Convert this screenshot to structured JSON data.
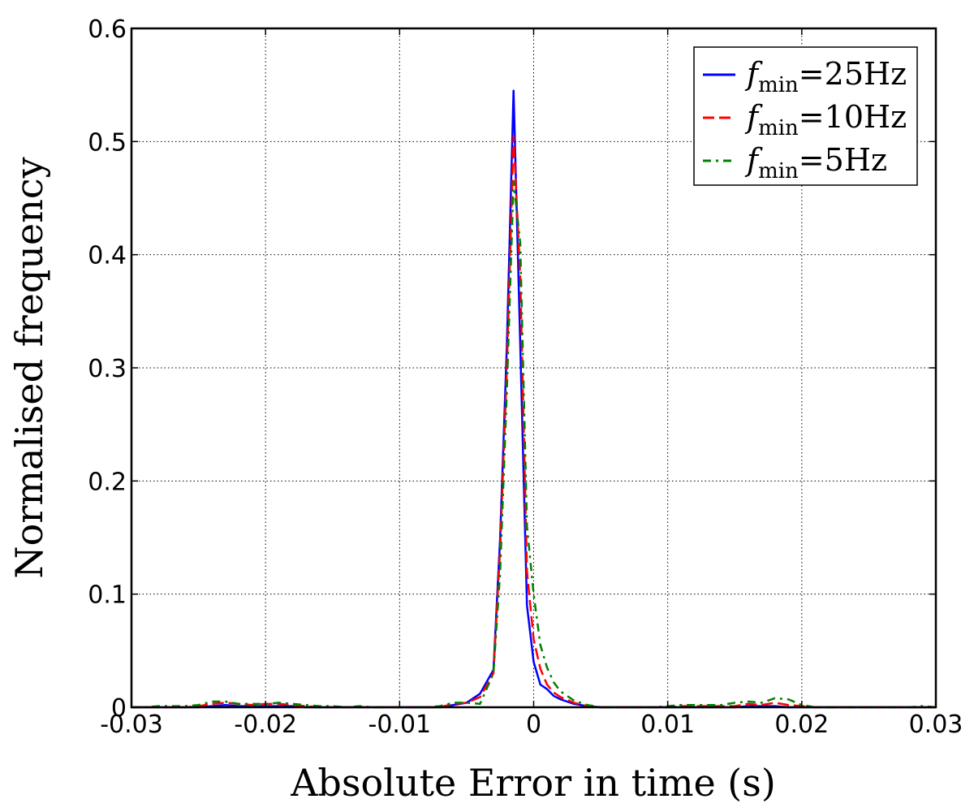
{
  "chart_data": {
    "type": "line",
    "title": "",
    "xlabel": "Absolute Error in time (s)",
    "ylabel": "Normalised frequency",
    "xlim": [
      -0.03,
      0.03
    ],
    "ylim": [
      0,
      0.6
    ],
    "x_ticks": [
      -0.03,
      -0.02,
      -0.01,
      0,
      0.01,
      0.02,
      0.03
    ],
    "x_tick_labels": [
      "-0.03",
      "-0.02",
      "-0.01",
      "0",
      "0.01",
      "0.02",
      "0.03"
    ],
    "y_ticks": [
      0,
      0.1,
      0.2,
      0.3,
      0.4,
      0.5,
      0.6
    ],
    "y_tick_labels": [
      "0",
      "0.1",
      "0.2",
      "0.3",
      "0.4",
      "0.5",
      "0.6"
    ],
    "grid": true,
    "legend_position": "top-right",
    "series": [
      {
        "name": "f_min = 25Hz",
        "label_main": "f",
        "label_sub": "min",
        "label_rest": "=25Hz",
        "color": "#0000ff",
        "line_style": "solid",
        "x": [
          -0.03,
          -0.029,
          -0.028,
          -0.027,
          -0.026,
          -0.025,
          -0.024,
          -0.023,
          -0.022,
          -0.021,
          -0.02,
          -0.019,
          -0.018,
          -0.017,
          -0.016,
          -0.015,
          -0.014,
          -0.013,
          -0.012,
          -0.011,
          -0.01,
          -0.009,
          -0.008,
          -0.007,
          -0.006,
          -0.005,
          -0.004,
          -0.003,
          -0.0025,
          -0.002,
          -0.0015,
          -0.001,
          -0.0005,
          0,
          0.0005,
          0.001,
          0.0015,
          0.002,
          0.003,
          0.004,
          0.005,
          0.006,
          0.007,
          0.008,
          0.009,
          0.01,
          0.011,
          0.012,
          0.013,
          0.014,
          0.015,
          0.016,
          0.017,
          0.018,
          0.019,
          0.02,
          0.021,
          0.022,
          0.023,
          0.024,
          0.025,
          0.026,
          0.027,
          0.028,
          0.029,
          0.03
        ],
        "y": [
          0,
          0,
          0,
          0,
          0,
          0,
          0.001,
          0.002,
          0.001,
          0.001,
          0.001,
          0.001,
          0.001,
          0,
          0,
          0,
          0,
          0,
          0,
          0,
          0,
          0,
          0,
          0,
          0.002,
          0.004,
          0.012,
          0.033,
          0.15,
          0.32,
          0.545,
          0.32,
          0.09,
          0.04,
          0.02,
          0.016,
          0.01,
          0.007,
          0.003,
          0.001,
          0,
          0,
          0,
          0,
          0,
          0,
          0,
          0,
          0,
          0,
          0,
          0.001,
          0.001,
          0.001,
          0,
          0,
          0,
          0,
          0,
          0,
          0,
          0,
          0,
          0,
          0,
          0
        ]
      },
      {
        "name": "f_min = 10Hz",
        "label_main": "f",
        "label_sub": "min",
        "label_rest": "=10Hz",
        "color": "#ff0000",
        "line_style": "dashed",
        "x": [
          -0.03,
          -0.029,
          -0.028,
          -0.027,
          -0.026,
          -0.025,
          -0.024,
          -0.023,
          -0.022,
          -0.021,
          -0.02,
          -0.019,
          -0.018,
          -0.017,
          -0.016,
          -0.015,
          -0.014,
          -0.013,
          -0.012,
          -0.011,
          -0.01,
          -0.009,
          -0.008,
          -0.007,
          -0.006,
          -0.005,
          -0.004,
          -0.003,
          -0.0025,
          -0.002,
          -0.0015,
          -0.001,
          -0.0005,
          0,
          0.0005,
          0.001,
          0.0015,
          0.002,
          0.003,
          0.004,
          0.005,
          0.006,
          0.007,
          0.008,
          0.009,
          0.01,
          0.011,
          0.012,
          0.013,
          0.014,
          0.015,
          0.016,
          0.017,
          0.018,
          0.019,
          0.02,
          0.021,
          0.022,
          0.023,
          0.024,
          0.025,
          0.026,
          0.027,
          0.028,
          0.029,
          0.03
        ],
        "y": [
          0,
          0,
          0,
          0,
          0,
          0.001,
          0.003,
          0.004,
          0.003,
          0.002,
          0.003,
          0.003,
          0.002,
          0.001,
          0,
          0,
          0,
          0,
          0,
          0,
          0,
          0,
          0,
          0,
          0.003,
          0.004,
          0.009,
          0.03,
          0.14,
          0.3,
          0.505,
          0.38,
          0.12,
          0.06,
          0.034,
          0.02,
          0.013,
          0.009,
          0.004,
          0.001,
          0,
          0,
          0,
          0,
          0,
          0,
          0.001,
          0.001,
          0.001,
          0.001,
          0.001,
          0.003,
          0.002,
          0.004,
          0.002,
          0.001,
          0,
          0,
          0,
          0,
          0,
          0,
          0,
          0,
          0,
          0
        ]
      },
      {
        "name": "f_min = 5Hz",
        "label_main": "f",
        "label_sub": "min",
        "label_rest": "=5Hz",
        "color": "#008000",
        "line_style": "dashdot",
        "x": [
          -0.03,
          -0.029,
          -0.028,
          -0.027,
          -0.026,
          -0.025,
          -0.024,
          -0.023,
          -0.022,
          -0.021,
          -0.02,
          -0.019,
          -0.018,
          -0.017,
          -0.016,
          -0.015,
          -0.014,
          -0.013,
          -0.012,
          -0.011,
          -0.01,
          -0.009,
          -0.008,
          -0.007,
          -0.006,
          -0.005,
          -0.004,
          -0.003,
          -0.0025,
          -0.002,
          -0.0015,
          -0.001,
          -0.0005,
          0,
          0.0005,
          0.001,
          0.0015,
          0.002,
          0.003,
          0.004,
          0.005,
          0.006,
          0.007,
          0.008,
          0.009,
          0.01,
          0.011,
          0.012,
          0.013,
          0.014,
          0.015,
          0.016,
          0.017,
          0.018,
          0.019,
          0.02,
          0.021,
          0.022,
          0.023,
          0.024,
          0.025,
          0.026,
          0.027,
          0.028,
          0.029,
          0.03
        ],
        "y": [
          0,
          0,
          0.001,
          0.001,
          0.001,
          0.002,
          0.005,
          0.005,
          0.003,
          0.003,
          0.003,
          0.004,
          0.003,
          0.002,
          0.001,
          0.001,
          0,
          0.001,
          0,
          0,
          0,
          0,
          0,
          0.001,
          0.004,
          0.004,
          0.003,
          0.03,
          0.12,
          0.28,
          0.465,
          0.41,
          0.16,
          0.1,
          0.055,
          0.035,
          0.022,
          0.014,
          0.006,
          0.002,
          0,
          0,
          0,
          0,
          0,
          0.001,
          0.002,
          0.002,
          0.002,
          0.002,
          0.004,
          0.005,
          0.004,
          0.008,
          0.007,
          0.002,
          0,
          0,
          0,
          0,
          0,
          0,
          0,
          0,
          0.001,
          0
        ]
      }
    ]
  }
}
